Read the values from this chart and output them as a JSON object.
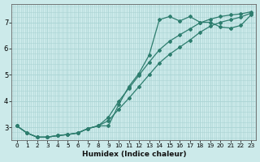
{
  "xlabel": "Humidex (Indice chaleur)",
  "bg_color": "#cceaea",
  "grid_color": "#aad4d4",
  "line_color": "#2d7d6e",
  "xlim": [
    -0.5,
    23.5
  ],
  "ylim": [
    2.5,
    7.7
  ],
  "yticks": [
    3,
    4,
    5,
    6,
    7
  ],
  "xticks": [
    0,
    1,
    2,
    3,
    4,
    5,
    6,
    7,
    8,
    9,
    10,
    11,
    12,
    13,
    14,
    15,
    16,
    17,
    18,
    19,
    20,
    21,
    22,
    23
  ],
  "line1_x": [
    0,
    1,
    2,
    3,
    4,
    5,
    6,
    7,
    8,
    9,
    10,
    11,
    12,
    13,
    14,
    15,
    16,
    17,
    18,
    19,
    20,
    21,
    22,
    23
  ],
  "line1_y": [
    3.05,
    2.78,
    2.62,
    2.62,
    2.68,
    2.72,
    2.78,
    2.95,
    3.05,
    3.05,
    3.85,
    4.55,
    5.05,
    5.75,
    7.1,
    7.22,
    7.05,
    7.22,
    7.0,
    7.0,
    6.82,
    6.78,
    6.88,
    7.28
  ],
  "line2_x": [
    0,
    1,
    2,
    3,
    4,
    5,
    6,
    7,
    8,
    9,
    10,
    11,
    12,
    13,
    14,
    15,
    16,
    17,
    18,
    19,
    20,
    21,
    22,
    23
  ],
  "line2_y": [
    3.05,
    2.78,
    2.62,
    2.62,
    2.68,
    2.72,
    2.78,
    2.95,
    3.05,
    3.25,
    3.68,
    4.1,
    4.55,
    5.0,
    5.45,
    5.78,
    6.05,
    6.32,
    6.62,
    6.85,
    7.0,
    7.1,
    7.2,
    7.35
  ],
  "line3_x": [
    0,
    1,
    2,
    3,
    4,
    5,
    6,
    7,
    8,
    9,
    10,
    11,
    12,
    13,
    14,
    15,
    16,
    17,
    18,
    19,
    20,
    21,
    22,
    23
  ],
  "line3_y": [
    3.05,
    2.78,
    2.62,
    2.62,
    2.68,
    2.72,
    2.78,
    2.95,
    3.05,
    3.38,
    3.98,
    4.48,
    4.98,
    5.48,
    5.95,
    6.28,
    6.52,
    6.75,
    6.98,
    7.12,
    7.22,
    7.28,
    7.32,
    7.4
  ]
}
